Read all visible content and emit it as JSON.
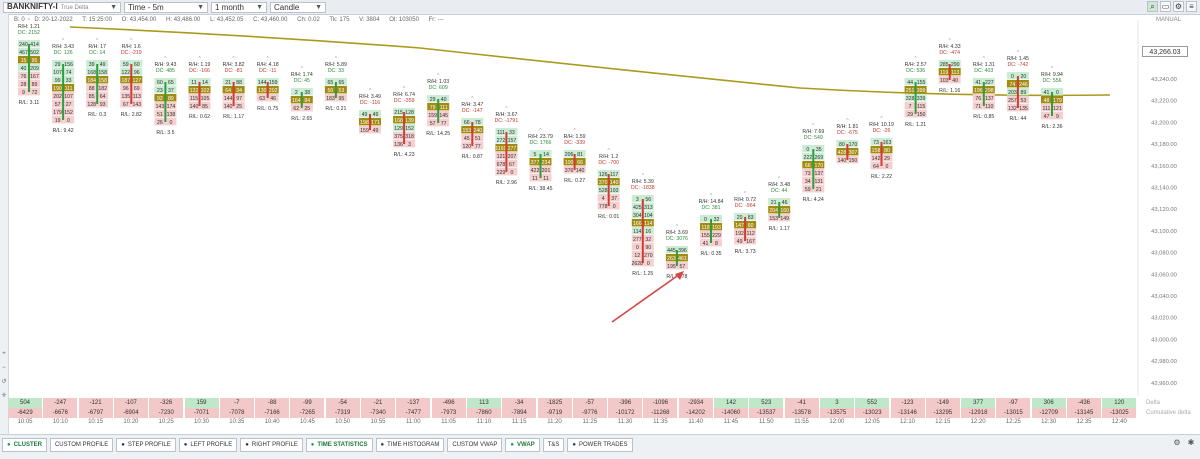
{
  "toolbar": {
    "symbol": "BANKNIFTY-I",
    "symbol_sub": "True Delta",
    "timeframe": "Time - 5m",
    "range": "1 month",
    "chart_type": "Candle"
  },
  "info": {
    "b": "B: 0",
    "date": "D: 20-12-2022",
    "time": "T: 15:25:00",
    "open": "O: 43,454.00",
    "high": "H: 43,486.00",
    "low": "L: 43,452.05",
    "close": "C: 43,460.00",
    "change": "Ch: 0.02",
    "ticks": "Tk: 175",
    "volume": "V: 3804",
    "oi": "OI: 103050",
    "fr": "Fr: ---"
  },
  "manual_label": "MANUAL",
  "current_price": "43,266.03",
  "price_axis": [
    "43,240.00",
    "43,220.00",
    "43,200.00",
    "43,180.00",
    "43,160.00",
    "43,140.00",
    "43,120.00",
    "43,100.00",
    "43,080.00",
    "43,060.00",
    "43,040.00",
    "43,020.00",
    "43,000.00",
    "42,980.00",
    "42,960.00",
    "42,940.00",
    "42,920.00"
  ],
  "time_labels": [
    "10:05",
    "10:10",
    "10:15",
    "10:20",
    "10:25",
    "10:30",
    "10:35",
    "10:40",
    "10:45",
    "10:50",
    "10:55",
    "11:00",
    "11:05",
    "11:10",
    "11:15",
    "11:20",
    "11:25",
    "11:30",
    "11:35",
    "11:40",
    "11:45",
    "11:50",
    "11:55",
    "12:00",
    "12:05",
    "12:10",
    "12:15",
    "12:20",
    "12:25",
    "12:30",
    "12:35",
    "12:40"
  ],
  "delta_row": [
    "504",
    "-247",
    "-121",
    "-107",
    "-326",
    "159",
    "-7",
    "-88",
    "-99",
    "-54",
    "-21",
    "-137",
    "-496",
    "113",
    "-34",
    "-1825",
    "-57",
    "-396",
    "-1096",
    "-2934",
    "142",
    "523",
    "-41",
    "3",
    "552",
    "-123",
    "-149",
    "377",
    "-97",
    "306",
    "-436",
    "120"
  ],
  "cum_delta_row": [
    "-6429",
    "-6676",
    "-6797",
    "-6904",
    "-7230",
    "-7071",
    "-7078",
    "-7166",
    "-7265",
    "-7319",
    "-7340",
    "-7477",
    "-7973",
    "-7860",
    "-7894",
    "-9719",
    "-9776",
    "-10172",
    "-11268",
    "-14202",
    "-14060",
    "-13537",
    "-13578",
    "-13575",
    "-13023",
    "-13146",
    "-13295",
    "-12918",
    "-13015",
    "-12709",
    "-13145",
    "-13025"
  ],
  "stat_labels": {
    "delta": "Delta",
    "cum_delta": "Cumulative delta"
  },
  "footprint": [
    {
      "rh": "R/H: 1.21",
      "dc": "DC: 2152",
      "rl": "R/L: 3.11",
      "cells": [
        [
          "240",
          "414"
        ],
        [
          "467",
          "502"
        ],
        [
          "15",
          "95"
        ],
        [
          "40",
          "209"
        ],
        [
          "76",
          "167"
        ],
        [
          "28",
          "89"
        ],
        [
          "9",
          "72"
        ]
      ]
    },
    {
      "rh": "R/H: 3.43",
      "dc": "DC: 126",
      "rl": "R/L: 9.42",
      "cells": [
        [
          "29",
          "156"
        ],
        [
          "107",
          "74"
        ],
        [
          "99",
          "33"
        ],
        [
          "190",
          "111"
        ],
        [
          "202",
          "107"
        ],
        [
          "57",
          "27"
        ],
        [
          "179",
          "152"
        ],
        [
          "19",
          "0"
        ]
      ]
    },
    {
      "rh": "R/H: 17",
      "dc": "DC: 14",
      "rl": "R/L: 0.3",
      "cells": [
        [
          "39",
          "49"
        ],
        [
          "168",
          "158"
        ],
        [
          "184",
          "158"
        ],
        [
          "88",
          "182"
        ],
        [
          "85",
          "64"
        ],
        [
          "128",
          "93"
        ]
      ]
    },
    {
      "rh": "R/H: 1.6",
      "dc": "DC: -219",
      "rl": "R/L: 2.82",
      "cells": [
        [
          "59",
          "60"
        ],
        [
          "122",
          "96"
        ],
        [
          "187",
          "127"
        ],
        [
          "96",
          "69"
        ],
        [
          "135",
          "113"
        ],
        [
          "67",
          "143"
        ]
      ]
    },
    {
      "rh": "R/H: 9.43",
      "dc": "DC: 485",
      "rl": "R/L: 3.5",
      "cells": [
        [
          "60",
          "65"
        ],
        [
          "23",
          "37"
        ],
        [
          "92",
          "89"
        ],
        [
          "143",
          "174"
        ],
        [
          "51",
          "138"
        ],
        [
          "26",
          "0"
        ]
      ]
    },
    {
      "rh": "R/H: 1.19",
      "dc": "DC: -166",
      "rl": "R/L: 0.62",
      "cells": [
        [
          "11",
          "14"
        ],
        [
          "132",
          "102"
        ],
        [
          "115",
          "105"
        ],
        [
          "140",
          "85"
        ]
      ]
    },
    {
      "rh": "R/H: 3.82",
      "dc": "DC: -81",
      "rl": "R/L: 1.17",
      "cells": [
        [
          "21",
          "88"
        ],
        [
          "64",
          "34"
        ],
        [
          "144",
          "97"
        ],
        [
          "140",
          "25"
        ]
      ]
    },
    {
      "rh": "R/H: 4.18",
      "dc": "DC: -11",
      "rl": "R/L: 0.75",
      "cells": [
        [
          "144",
          "159"
        ],
        [
          "130",
          "202"
        ],
        [
          "63",
          "46"
        ]
      ]
    },
    {
      "rh": "R/H: 1.74",
      "dc": "DC: 45",
      "rl": "R/L: 2.65",
      "cells": [
        [
          "2",
          "38"
        ],
        [
          "164",
          "84"
        ],
        [
          "62",
          "25"
        ]
      ]
    },
    {
      "rh": "R/H: 5.89",
      "dc": "DC: 33",
      "rl": "R/L: 0.21",
      "cells": [
        [
          "65",
          "65"
        ],
        [
          "50",
          "53"
        ],
        [
          "183",
          "95"
        ]
      ]
    },
    {
      "rh": "R/H: 3.49",
      "dc": "DC: -116",
      "rl": "",
      "cells": [
        [
          "49",
          "49"
        ],
        [
          "198",
          "171"
        ],
        [
          "159",
          "49"
        ]
      ]
    },
    {
      "rh": "R/H: 6.74",
      "dc": "DC: -359",
      "rl": "R/L: 4.23",
      "cells": [
        [
          "215",
          "128"
        ],
        [
          "168",
          "139"
        ],
        [
          "129",
          "152"
        ],
        [
          "375",
          "318"
        ],
        [
          "136",
          "3"
        ]
      ]
    },
    {
      "rh": "R/H: 1.03",
      "dc": "DC: 609",
      "rl": "R/L: 14.25",
      "cells": [
        [
          "29",
          "40"
        ],
        [
          "79",
          "111"
        ],
        [
          "159",
          "145"
        ],
        [
          "57",
          "77"
        ]
      ]
    },
    {
      "rh": "R/H: 3.47",
      "dc": "DC: -147",
      "rl": "R/L: 0.87",
      "cells": [
        [
          "66",
          "78"
        ],
        [
          "153",
          "240"
        ],
        [
          "45",
          "51"
        ],
        [
          "120",
          "77"
        ]
      ]
    },
    {
      "rh": "R/H: 3.67",
      "dc": "DC: -1791",
      "rl": "R/L: 2.96",
      "cells": [
        [
          "111",
          "33"
        ],
        [
          "272",
          "157"
        ],
        [
          "1169",
          "277"
        ],
        [
          "121",
          "207"
        ],
        [
          "678",
          "67"
        ],
        [
          "229",
          "0"
        ]
      ]
    },
    {
      "rh": "R/H: 23.79",
      "dc": "DC: 1766",
      "rl": "R/L: 38.45",
      "cells": [
        [
          "5",
          "14"
        ],
        [
          "377",
          "234"
        ],
        [
          "422",
          "201"
        ],
        [
          "11",
          "11"
        ]
      ]
    },
    {
      "rh": "R/H: 1.59",
      "dc": "DC: -339",
      "rl": "R/L: 0.27",
      "cells": [
        [
          "206",
          "81"
        ],
        [
          "100",
          "66"
        ],
        [
          "376",
          "140"
        ]
      ]
    },
    {
      "rh": "R/H: 1.2",
      "dc": "DC: -700",
      "rl": "R/L: 0.01",
      "cells": [
        [
          "126",
          "117"
        ],
        [
          "370",
          "140"
        ],
        [
          "528",
          "193"
        ],
        [
          "4",
          "37"
        ],
        [
          "778",
          "0"
        ]
      ]
    },
    {
      "rh": "R/H: 5.39",
      "dc": "DC: -1838",
      "rl": "R/L: 1.25",
      "cells": [
        [
          "3",
          "56"
        ],
        [
          "425",
          "313"
        ],
        [
          "304",
          "104"
        ],
        [
          "166",
          "114"
        ],
        [
          "114",
          "16"
        ],
        [
          "277",
          "32"
        ],
        [
          "0",
          "90"
        ],
        [
          "12",
          "270"
        ],
        [
          "2628",
          "0"
        ]
      ]
    },
    {
      "rh": "R/H: 3.69",
      "dc": "DC: 3076",
      "rl": "R/L: 3.78",
      "cells": [
        [
          "445",
          "396"
        ],
        [
          "263",
          "461"
        ],
        [
          "195",
          "57"
        ]
      ]
    },
    {
      "rh": "R/H: 14.84",
      "dc": "DC: 381",
      "rl": "R/L: 0.35",
      "cells": [
        [
          "0",
          "32"
        ],
        [
          "118",
          "193"
        ],
        [
          "155",
          "229"
        ],
        [
          "41",
          "8"
        ]
      ]
    },
    {
      "rh": "R/H: 0.72",
      "dc": "DC: -964",
      "rl": "R/L: 3.73",
      "cells": [
        [
          "20",
          "83"
        ],
        [
          "147",
          "60"
        ],
        [
          "192",
          "112"
        ],
        [
          "49",
          "167"
        ]
      ]
    },
    {
      "rh": "R/H: 3.48",
      "dc": "DC: 44",
      "rl": "R/L: 1.17",
      "cells": [
        [
          "21",
          "46"
        ],
        [
          "204",
          "160"
        ],
        [
          "153",
          "149"
        ]
      ]
    },
    {
      "rh": "R/H: 7.69",
      "dc": "DC: 549",
      "rl": "R/L: 4.24",
      "cells": [
        [
          "0",
          "35"
        ],
        [
          "222",
          "269"
        ],
        [
          "66",
          "170"
        ],
        [
          "73",
          "137"
        ],
        [
          "34",
          "131"
        ],
        [
          "59",
          "21"
        ]
      ]
    },
    {
      "rh": "R/H: 1.81",
      "dc": "DC: -675",
      "rl": "",
      "cells": [
        [
          "80",
          "170"
        ],
        [
          "428",
          "307"
        ],
        [
          "140",
          "150"
        ]
      ]
    },
    {
      "rh": "R/H: 10.19",
      "dc": "DC: -26",
      "rl": "R/L: 2.22",
      "cells": [
        [
          "73",
          "163"
        ],
        [
          "158",
          "80"
        ],
        [
          "142",
          "29"
        ],
        [
          "64",
          "0"
        ]
      ]
    },
    {
      "rh": "R/H: 2.57",
      "dc": "DC: 536",
      "rl": "R/L: 1.21",
      "cells": [
        [
          "44",
          "155"
        ],
        [
          "251",
          "399"
        ],
        [
          "328",
          "339"
        ],
        [
          "7",
          "115"
        ],
        [
          "29",
          "150"
        ]
      ]
    },
    {
      "rh": "R/H: 4.33",
      "dc": "DC: -474",
      "rl": "R/L: 1.16",
      "cells": [
        [
          "285",
          "290"
        ],
        [
          "119",
          "113"
        ],
        [
          "103",
          "40"
        ]
      ]
    },
    {
      "rh": "R/H: 1.31",
      "dc": "DC: 403",
      "rl": "R/L: 0.85",
      "cells": [
        [
          "41",
          "227"
        ],
        [
          "196",
          "298"
        ],
        [
          "76",
          "137"
        ],
        [
          "71",
          "110"
        ]
      ]
    },
    {
      "rh": "R/H: 1.45",
      "dc": "DC: -742",
      "rl": "R/L: 44",
      "cells": [
        [
          "0",
          "20"
        ],
        [
          "74",
          "246"
        ],
        [
          "203",
          "89"
        ],
        [
          "257",
          "53"
        ],
        [
          "132",
          "135"
        ]
      ]
    },
    {
      "rh": "R/H: 9.94",
      "dc": "DC: 556",
      "rl": "R/L: 2.36",
      "cells": [
        [
          "41",
          "0"
        ],
        [
          "48",
          "179"
        ],
        [
          "111",
          "121"
        ],
        [
          "47",
          "9"
        ]
      ]
    },
    {
      "rh": "",
      "dc": "",
      "rl": "",
      "cells": []
    }
  ],
  "tabs": [
    {
      "label": "CLUSTER",
      "on": true
    },
    {
      "label": "CUSTOM PROFILE",
      "on": false,
      "nodot": true
    },
    {
      "label": "STEP PROFILE",
      "on": false
    },
    {
      "label": "LEFT PROFILE",
      "on": false
    },
    {
      "label": "RIGHT PROFILE",
      "on": false
    },
    {
      "label": "TIME STATISTICS",
      "on": true
    },
    {
      "label": "TIME HISTOGRAM",
      "on": false
    },
    {
      "label": "CUSTOM VWAP",
      "on": false,
      "nodot": true
    },
    {
      "label": "VWAP",
      "on": true
    },
    {
      "label": "T&S",
      "on": false,
      "nodot": true
    },
    {
      "label": "POWER TRADES",
      "on": false
    }
  ],
  "colors": {
    "green_cell": "#c9ecd3",
    "red_cell": "#f6cfcf",
    "gold_cell": "#a38b12",
    "vwap": "#a89b1d",
    "wick_green": "#2e9e3e",
    "wick_red": "#d23b33",
    "arrow": "#d54545",
    "stat_green": "#bfe7c8",
    "stat_red": "#f3c8c8"
  }
}
